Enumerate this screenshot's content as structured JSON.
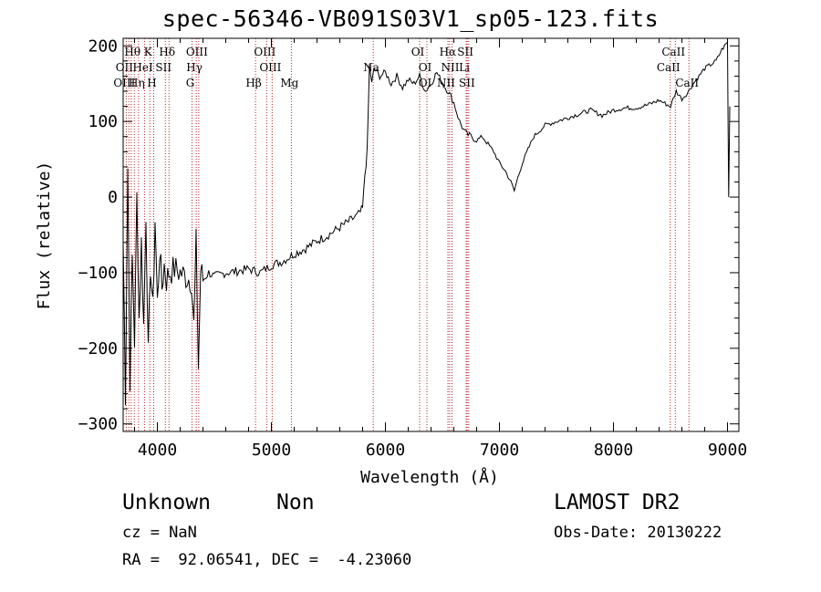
{
  "header": {
    "title": "spec-56346-VB091S03V1_sp05-123.fits"
  },
  "info": {
    "classification": "Unknown",
    "subclass": "Non",
    "cz": "cz = NaN",
    "coords": "RA =  92.06541, DEC =  -4.23060",
    "survey": "LAMOST DR2",
    "obs_date": "Obs-Date: 20130222"
  },
  "colors": {
    "line_marker": "#b22222",
    "spectrum": "#000000",
    "background": "#ffffff"
  },
  "chart_data": {
    "type": "line",
    "title": "spec-56346-VB091S03V1_sp05-123.fits",
    "xlabel": "Wavelength (Å)",
    "ylabel": "Flux (relative)",
    "xlim": [
      3700,
      9100
    ],
    "ylim": [
      -310,
      210
    ],
    "xticks": [
      4000,
      5000,
      6000,
      7000,
      8000,
      9000
    ],
    "yticks": [
      -300,
      -200,
      -100,
      0,
      100,
      200
    ],
    "grid": false,
    "series": [
      {
        "x": [
          3700,
          3720,
          3740,
          3760,
          3780,
          3800,
          3820,
          3840,
          3860,
          3880,
          3900,
          3920,
          3940,
          3960,
          3980,
          4000,
          4020,
          4040,
          4060,
          4080,
          4100,
          4150,
          4200,
          4250,
          4300,
          4320,
          4340,
          4360,
          4380,
          4400,
          4450,
          4500,
          4600,
          4700,
          4800,
          4900,
          5000,
          5100,
          5200,
          5300,
          5400,
          5500,
          5600,
          5700,
          5750,
          5780,
          5800,
          5820,
          5840,
          5860,
          5880,
          5900,
          5950,
          6000,
          6050,
          6100,
          6150,
          6200,
          6250,
          6300,
          6350,
          6400,
          6450,
          6500,
          6550,
          6600,
          6650,
          6700,
          6750,
          6800,
          6850,
          6900,
          6950,
          7000,
          7050,
          7100,
          7130,
          7160,
          7200,
          7300,
          7400,
          7500,
          7600,
          7700,
          7800,
          7900,
          8000,
          8100,
          8200,
          8300,
          8400,
          8500,
          8550,
          8600,
          8650,
          8700,
          8800,
          8900,
          8950,
          9000,
          9010,
          9020
        ],
        "y": [
          -60,
          -260,
          40,
          -240,
          -80,
          -190,
          0,
          -160,
          -60,
          -170,
          -20,
          -210,
          -90,
          -150,
          -30,
          -140,
          -70,
          -120,
          -90,
          -110,
          -100,
          -95,
          -100,
          -105,
          -110,
          -170,
          -60,
          -225,
          -95,
          -110,
          -100,
          -105,
          -100,
          -98,
          -95,
          -100,
          -90,
          -85,
          -75,
          -68,
          -58,
          -50,
          -40,
          -30,
          -25,
          -20,
          -15,
          30,
          60,
          175,
          150,
          170,
          160,
          165,
          150,
          160,
          145,
          155,
          150,
          160,
          140,
          150,
          165,
          150,
          140,
          125,
          100,
          85,
          80,
          75,
          80,
          70,
          60,
          45,
          35,
          20,
          8,
          25,
          45,
          80,
          95,
          100,
          105,
          110,
          115,
          108,
          115,
          118,
          118,
          122,
          128,
          120,
          140,
          130,
          138,
          150,
          170,
          180,
          195,
          205,
          0,
          120
        ]
      }
    ],
    "annotations": [
      {
        "label": "Hθ",
        "x": 3798,
        "row": 1
      },
      {
        "label": "K",
        "x": 3934,
        "row": 1
      },
      {
        "label": "Hδ",
        "x": 4102,
        "row": 1
      },
      {
        "label": "OIII",
        "x": 4363,
        "row": 1
      },
      {
        "label": "OIII",
        "x": 4959,
        "row": 1
      },
      {
        "label": "OI",
        "x": 6300,
        "row": 1
      },
      {
        "label": "Hα",
        "x": 6563,
        "row": 1
      },
      {
        "label": "SII",
        "x": 6717,
        "row": 1
      },
      {
        "label": "CaII",
        "x": 8542,
        "row": 1
      },
      {
        "label": "OII",
        "x": 3727,
        "row": 2
      },
      {
        "label": "HeI",
        "x": 3889,
        "row": 2
      },
      {
        "label": "SII",
        "x": 4070,
        "row": 2
      },
      {
        "label": "Hγ",
        "x": 4341,
        "row": 2
      },
      {
        "label": "OIII",
        "x": 5007,
        "row": 2
      },
      {
        "label": "Na",
        "x": 5893,
        "row": 2
      },
      {
        "label": "OI",
        "x": 6364,
        "row": 2
      },
      {
        "label": "NII",
        "x": 6584,
        "row": 2
      },
      {
        "label": "Li",
        "x": 6708,
        "row": 2
      },
      {
        "label": "CaII",
        "x": 8498,
        "row": 2
      },
      {
        "label": "OIII",
        "x": 3727,
        "row": 3
      },
      {
        "label": "Hη",
        "x": 3835,
        "row": 3
      },
      {
        "label": "H",
        "x": 3968,
        "row": 3
      },
      {
        "label": "G",
        "x": 4304,
        "row": 3
      },
      {
        "label": "Hβ",
        "x": 4861,
        "row": 3
      },
      {
        "label": "Mg",
        "x": 5175,
        "row": 3
      },
      {
        "label": "OI",
        "x": 6364,
        "row": 3
      },
      {
        "label": "NII",
        "x": 6548,
        "row": 3
      },
      {
        "label": "SII",
        "x": 6731,
        "row": 3
      },
      {
        "label": "CaII",
        "x": 8662,
        "row": 3
      }
    ],
    "marker_lines": [
      3727,
      3750,
      3771,
      3798,
      3835,
      3889,
      3934,
      3968,
      4070,
      4102,
      4304,
      4341,
      4363,
      4861,
      4959,
      5007,
      5175,
      5893,
      6300,
      6364,
      6548,
      6563,
      6584,
      6708,
      6717,
      6731,
      8498,
      8542,
      8662
    ]
  }
}
